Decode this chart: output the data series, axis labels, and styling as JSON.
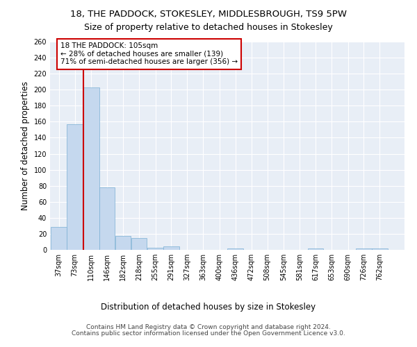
{
  "title1": "18, THE PADDOCK, STOKESLEY, MIDDLESBROUGH, TS9 5PW",
  "title2": "Size of property relative to detached houses in Stokesley",
  "xlabel": "Distribution of detached houses by size in Stokesley",
  "ylabel": "Number of detached properties",
  "bar_color": "#c5d8ee",
  "bar_edge_color": "#7aafd4",
  "annotation_text": "18 THE PADDOCK: 105sqm\n← 28% of detached houses are smaller (139)\n71% of semi-detached houses are larger (356) →",
  "vline_color": "#cc0000",
  "box_edge_color": "#cc0000",
  "categories": [
    "37sqm",
    "73sqm",
    "110sqm",
    "146sqm",
    "182sqm",
    "218sqm",
    "255sqm",
    "291sqm",
    "327sqm",
    "363sqm",
    "400sqm",
    "436sqm",
    "472sqm",
    "508sqm",
    "545sqm",
    "581sqm",
    "617sqm",
    "653sqm",
    "690sqm",
    "726sqm",
    "762sqm"
  ],
  "values": [
    29,
    157,
    203,
    78,
    17,
    15,
    3,
    4,
    0,
    0,
    0,
    2,
    0,
    0,
    0,
    0,
    2,
    0,
    0,
    2,
    2
  ],
  "bin_edges_sqm": [
    37,
    73,
    110,
    146,
    182,
    218,
    255,
    291,
    327,
    363,
    400,
    436,
    472,
    508,
    545,
    581,
    617,
    653,
    690,
    726,
    762,
    798
  ],
  "ylim_max": 260,
  "yticks": [
    0,
    20,
    40,
    60,
    80,
    100,
    120,
    140,
    160,
    180,
    200,
    220,
    240,
    260
  ],
  "footer1": "Contains HM Land Registry data © Crown copyright and database right 2024.",
  "footer2": "Contains public sector information licensed under the Open Government Licence v3.0.",
  "bg_color": "#e8eef6",
  "grid_color": "#ffffff",
  "title_fontsize": 9.5,
  "subtitle_fontsize": 9,
  "axis_label_fontsize": 8.5,
  "tick_fontsize": 7,
  "footer_fontsize": 6.5,
  "annotation_fontsize": 7.5
}
